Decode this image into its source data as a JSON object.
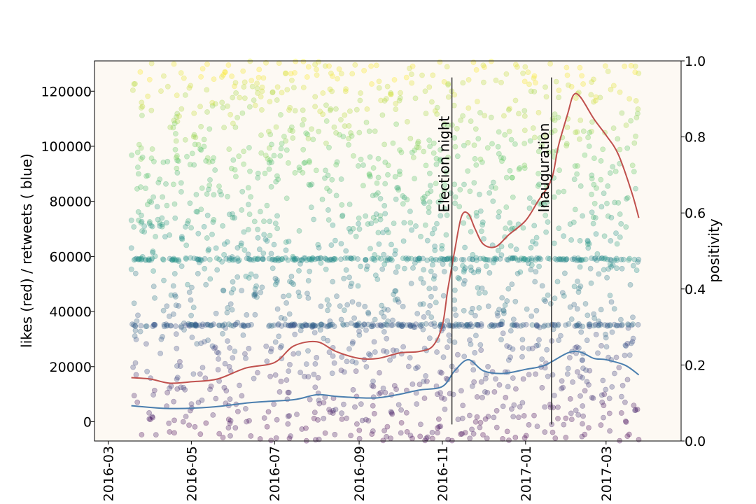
{
  "chart_data": {
    "type": "scatter",
    "title": "",
    "xlabel": "",
    "ylabel": "likes (red) / retweets ( blue)",
    "y2label": "positivity",
    "xlim": [
      "2016-02-20",
      "2017-04-25"
    ],
    "ylim": [
      -7000,
      131000
    ],
    "y2lim": [
      0.0,
      1.0
    ],
    "x_ticks": [
      "2016-03",
      "2016-05",
      "2016-07",
      "2016-09",
      "2016-11",
      "2017-01",
      "2017-03"
    ],
    "x_tick_dates": [
      "2016-03-01",
      "2016-05-01",
      "2016-07-01",
      "2016-09-01",
      "2016-11-01",
      "2017-01-01",
      "2017-03-01"
    ],
    "y_ticks": [
      0,
      20000,
      40000,
      60000,
      80000,
      100000,
      120000
    ],
    "y2_ticks": [
      "0.0",
      "0.2",
      "0.4",
      "0.6",
      "0.8",
      "1.0"
    ],
    "grid": false,
    "plot_background": "#fdf9f3",
    "colormap": "viridis",
    "scatter": {
      "description": "individual tweets, likes/retweets vs date, colored by positivity",
      "date_range": [
        "2016-03-18",
        "2017-03-25"
      ],
      "y_range": [
        -7000,
        131000
      ],
      "bands_y": [
        35000,
        59000
      ],
      "point_alpha": 0.3,
      "colors": [
        "#440154",
        "#3b528b",
        "#21918c",
        "#5ec962",
        "#fde725"
      ]
    },
    "series": [
      {
        "name": "likes (red)",
        "color": "#c0504d",
        "x": [
          "2016-03-18",
          "2016-04-01",
          "2016-04-15",
          "2016-05-01",
          "2016-05-20",
          "2016-06-10",
          "2016-07-01",
          "2016-07-15",
          "2016-08-01",
          "2016-08-15",
          "2016-09-01",
          "2016-09-15",
          "2016-10-01",
          "2016-10-15",
          "2016-10-25",
          "2016-11-01",
          "2016-11-05",
          "2016-11-10",
          "2016-11-15",
          "2016-11-20",
          "2016-11-25",
          "2016-12-01",
          "2016-12-10",
          "2016-12-20",
          "2017-01-01",
          "2017-01-10",
          "2017-01-20",
          "2017-01-25",
          "2017-02-01",
          "2017-02-05",
          "2017-02-10",
          "2017-02-20",
          "2017-03-01",
          "2017-03-10",
          "2017-03-20",
          "2017-03-25"
        ],
        "y": [
          16000,
          15500,
          14000,
          14500,
          15500,
          19500,
          21500,
          27500,
          29000,
          25500,
          23000,
          23000,
          25000,
          25500,
          27500,
          35000,
          48000,
          62000,
          74500,
          75500,
          70000,
          64500,
          63500,
          68000,
          73000,
          80000,
          88000,
          100000,
          112000,
          118500,
          118000,
          110000,
          104000,
          97000,
          83000,
          74000
        ]
      },
      {
        "name": "retweets ( blue)",
        "color": "#4a7eae",
        "x": [
          "2016-03-18",
          "2016-04-15",
          "2016-05-15",
          "2016-06-15",
          "2016-07-15",
          "2016-08-01",
          "2016-08-15",
          "2016-09-01",
          "2016-09-15",
          "2016-10-01",
          "2016-10-15",
          "2016-11-01",
          "2016-11-10",
          "2016-11-20",
          "2016-12-01",
          "2016-12-15",
          "2017-01-01",
          "2017-01-15",
          "2017-02-01",
          "2017-02-10",
          "2017-02-20",
          "2017-03-01",
          "2017-03-15",
          "2017-03-25"
        ],
        "y": [
          5800,
          4800,
          5300,
          7000,
          8000,
          9800,
          9200,
          8700,
          8700,
          10000,
          11500,
          12800,
          18500,
          22500,
          18500,
          17500,
          19000,
          20500,
          25000,
          25300,
          23000,
          22500,
          20500,
          17000
        ]
      }
    ],
    "annotations": [
      {
        "text": "Election night",
        "x": "2016-11-08",
        "y_top": 125000,
        "y_bottom": -1000
      },
      {
        "text": "Inauguration",
        "x": "2017-01-20",
        "y_top": 125000,
        "y_bottom": -1000
      }
    ]
  }
}
